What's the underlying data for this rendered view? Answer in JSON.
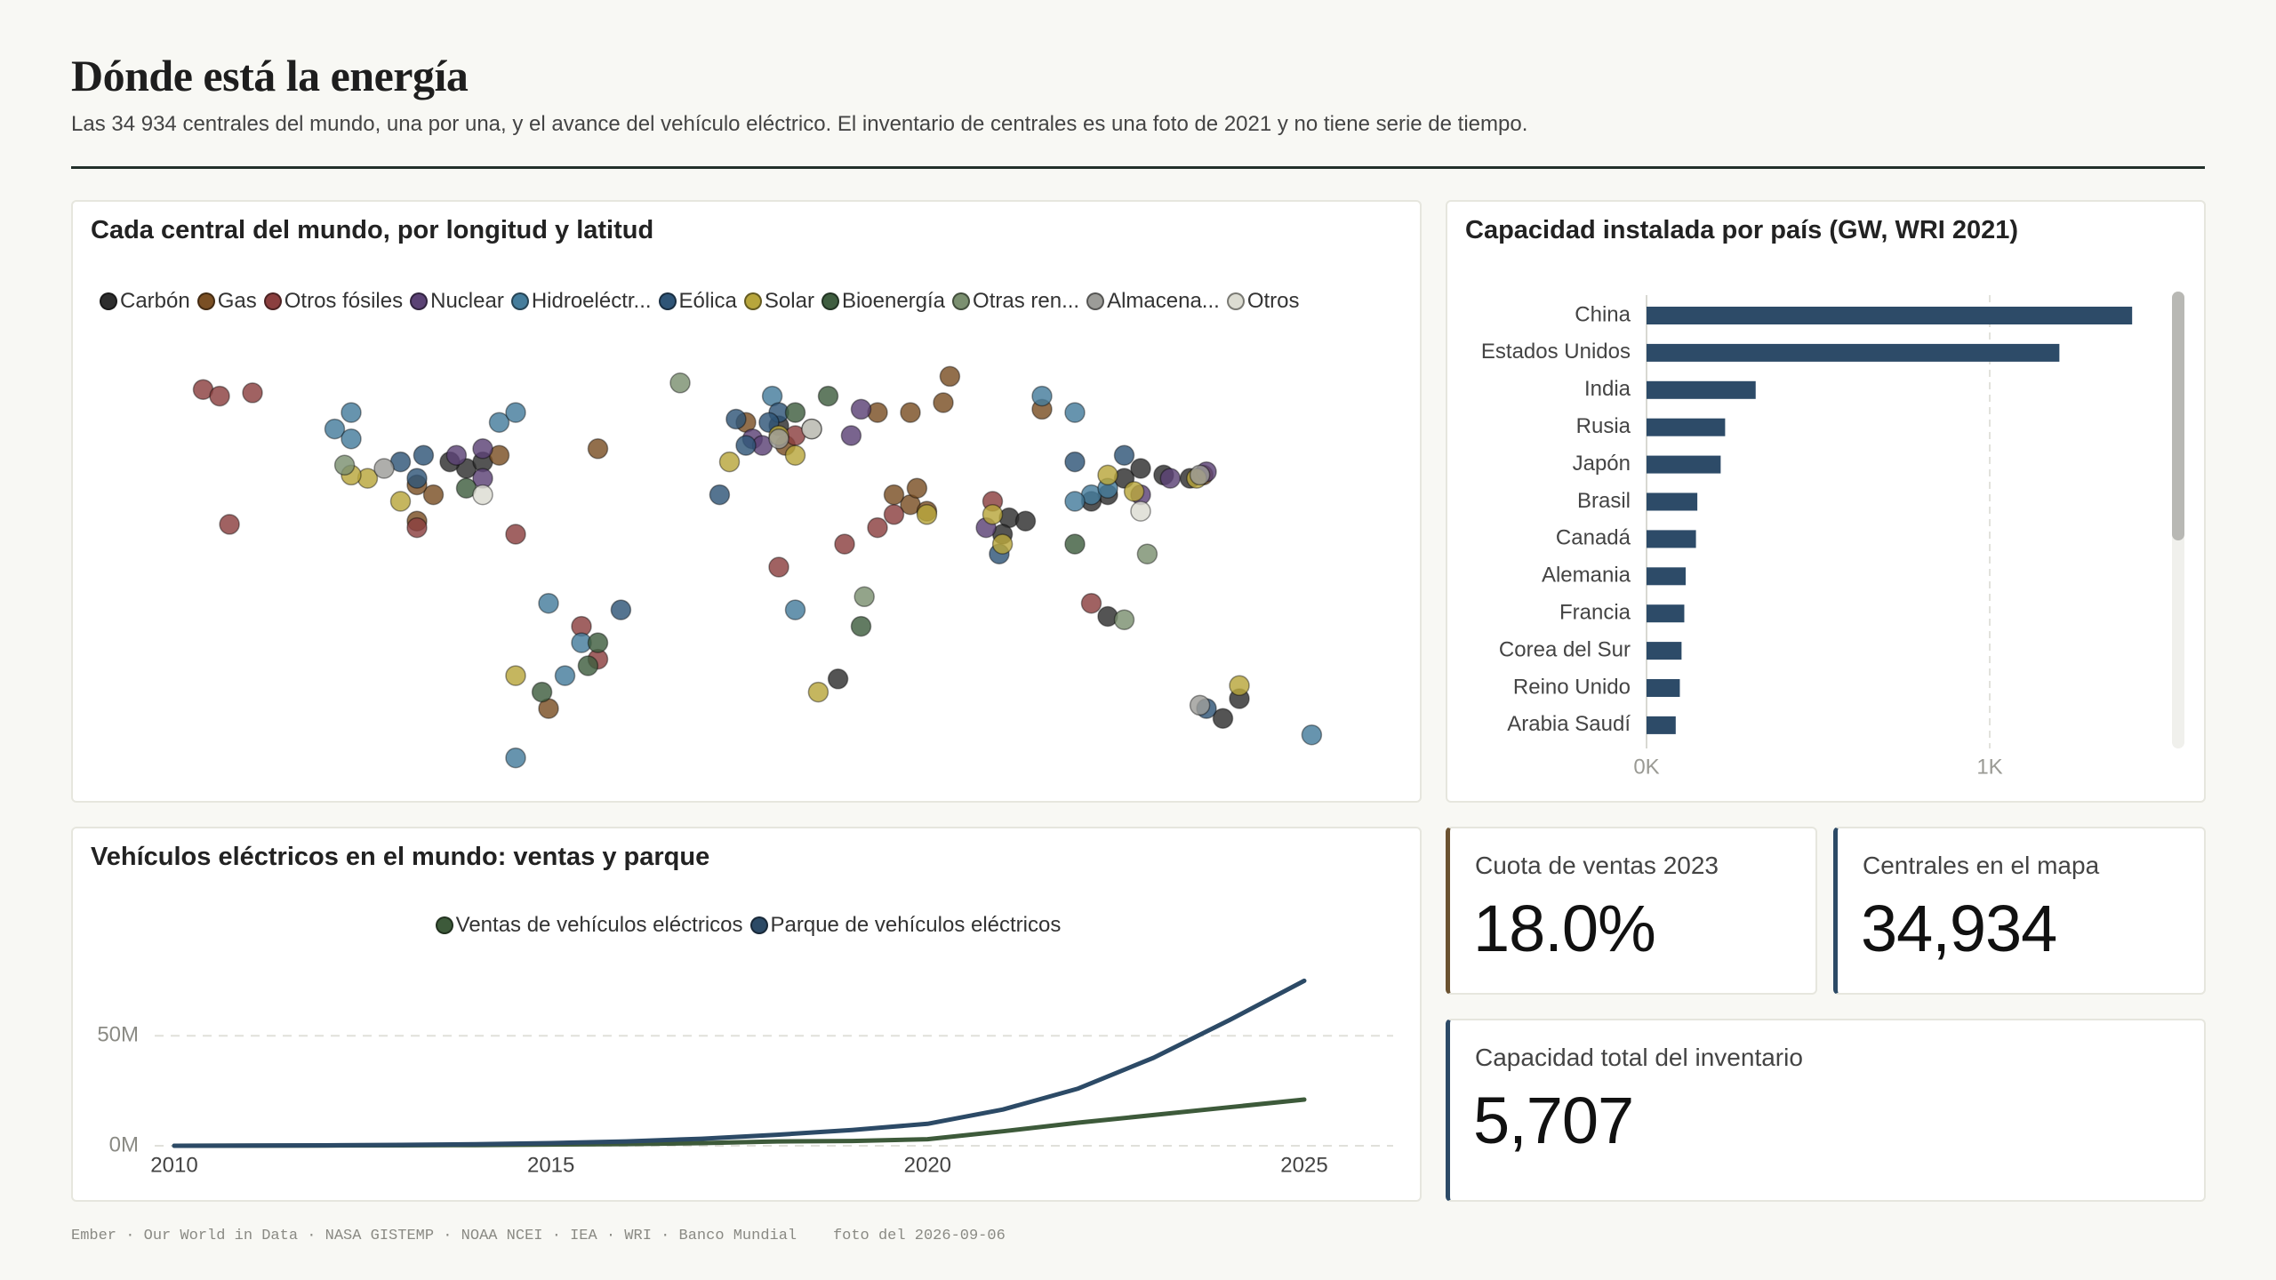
{
  "header": {
    "title": "Dónde está la energía",
    "subtitle": "Las 34 934 centrales del mundo, una por una, y el avance del vehículo eléctrico. El inventario de centrales es una foto de 2021 y no tiene serie de tiempo."
  },
  "chart_data": [
    {
      "type": "scatter",
      "title": "Cada central del mundo, por longitud y latitud",
      "xlim": [
        -180,
        180
      ],
      "ylim": [
        -56,
        78
      ],
      "series": [
        {
          "name": "Carbón",
          "color": "#2e2e2e",
          "x": [
            -85,
            -90,
            -80,
            115,
            110,
            120,
            105,
            80,
            85,
            78,
            20,
            10,
            28,
            150,
            145,
            110,
            135,
            127
          ],
          "values": [
            38,
            40,
            40,
            35,
            30,
            38,
            28,
            23,
            22,
            18,
            50,
            51,
            -26,
            -32,
            -38,
            -7,
            35,
            36
          ]
        },
        {
          "name": "Gas",
          "color": "#7a4f24",
          "x": [
            -95,
            -100,
            -75,
            50,
            60,
            40,
            90,
            50,
            55,
            45,
            0,
            12,
            -100,
            -60,
            139,
            52,
            -45,
            62
          ],
          "values": [
            30,
            33,
            42,
            55,
            58,
            55,
            56,
            27,
            25,
            30,
            52,
            45,
            22,
            -35,
            36,
            32,
            44,
            66
          ]
        },
        {
          "name": "Otros fósiles",
          "color": "#8b3f3f",
          "x": [
            -165,
            -160,
            -150,
            45,
            40,
            -50,
            -45,
            10,
            30,
            15,
            75,
            105,
            -100,
            -70,
            -157
          ],
          "values": [
            62,
            60,
            61,
            24,
            20,
            -10,
            -20,
            8,
            15,
            48,
            28,
            -3,
            20,
            18,
            21
          ]
        },
        {
          "name": "Nuclear",
          "color": "#5b4275",
          "x": [
            2,
            5,
            -80,
            -88,
            140,
            129,
            120,
            35,
            32,
            -80,
            73
          ],
          "values": [
            47,
            45,
            35,
            42,
            37,
            35,
            30,
            56,
            48,
            44,
            20
          ]
        },
        {
          "name": "Hidroeléctr...",
          "color": "#457d9c",
          "x": [
            -75,
            -70,
            -120,
            -125,
            -55,
            -50,
            -60,
            105,
            100,
            110,
            100,
            90,
            8,
            15,
            -120,
            172,
            -70
          ],
          "values": [
            52,
            55,
            55,
            50,
            -25,
            -15,
            -3,
            30,
            28,
            32,
            55,
            60,
            60,
            -5,
            47,
            -43,
            -50
          ]
        },
        {
          "name": "Eólica",
          "color": "#2f5577",
          "x": [
            10,
            -3,
            7,
            0,
            -100,
            -98,
            -105,
            115,
            100,
            77,
            -38,
            140,
            -8
          ],
          "values": [
            55,
            53,
            52,
            45,
            35,
            42,
            40,
            42,
            40,
            12,
            -5,
            -35,
            30
          ]
        },
        {
          "name": "Solar",
          "color": "#b8a63c",
          "x": [
            10,
            -5,
            15,
            -115,
            -120,
            110,
            118,
            75,
            78,
            137,
            150,
            -70,
            22,
            55,
            -105
          ],
          "values": [
            48,
            40,
            42,
            35,
            36,
            36,
            31,
            24,
            15,
            35,
            -28,
            -25,
            -30,
            24,
            28
          ]
        },
        {
          "name": "Bioenergía",
          "color": "#3f5e40",
          "x": [
            -48,
            -45,
            15,
            25,
            -85,
            100,
            -62,
            35
          ],
          "values": [
            -22,
            -15,
            55,
            60,
            32,
            15,
            -30,
            -10
          ]
        },
        {
          "name": "Otras ren...",
          "color": "#7b9070",
          "x": [
            -20,
            115,
            122,
            36,
            -122
          ],
          "values": [
            64,
            -8,
            12,
            -1,
            39
          ]
        },
        {
          "name": "Almacena...",
          "color": "#9c9c98",
          "x": [
            -110,
            10,
            138,
            138
          ],
          "values": [
            38,
            47,
            36,
            -34
          ]
        },
        {
          "name": "Otros",
          "color": "#dcdcd2",
          "x": [
            20,
            -80,
            120
          ],
          "values": [
            50,
            30,
            25
          ]
        }
      ]
    },
    {
      "type": "bar",
      "orientation": "horizontal",
      "title": "Capacidad instalada por país (GW, WRI 2021)",
      "color": "#2d4b68",
      "grid": true,
      "categories": [
        "China",
        "Estados Unidos",
        "India",
        "Rusia",
        "Japón",
        "Brasil",
        "Canadá",
        "Alemania",
        "Francia",
        "Corea del Sur",
        "Reino Unido",
        "Arabia Saudí"
      ],
      "values": [
        1415,
        1203,
        318,
        229,
        216,
        148,
        144,
        114,
        110,
        102,
        97,
        85
      ],
      "xlim": [
        0,
        1500
      ],
      "xticks": [
        {
          "value": 0,
          "label": "0K"
        },
        {
          "value": 1000,
          "label": "1K"
        }
      ]
    },
    {
      "type": "line",
      "title": "Vehículos eléctricos en el mundo: ventas y parque",
      "grid": true,
      "x": [
        2010,
        2011,
        2012,
        2013,
        2014,
        2015,
        2016,
        2017,
        2018,
        2019,
        2020,
        2021,
        2022,
        2023,
        2024,
        2025
      ],
      "xlim": [
        2010,
        2025
      ],
      "xticks": [
        2010,
        2015,
        2020,
        2025
      ],
      "ylim": [
        0,
        80000000
      ],
      "yticks": [
        {
          "value": 0,
          "label": "0M"
        },
        {
          "value": 50000000,
          "label": "50M"
        }
      ],
      "series": [
        {
          "name": "Ventas de vehículos eléctricos",
          "color": "#3d5a3a",
          "values": [
            10000,
            50000,
            130000,
            200000,
            320000,
            550000,
            750000,
            1200000,
            2000000,
            2200000,
            3000000,
            6600000,
            10500000,
            14000000,
            17500000,
            21000000
          ]
        },
        {
          "name": "Parque de vehículos eléctricos",
          "color": "#2c4a66",
          "values": [
            20000,
            70000,
            200000,
            400000,
            700000,
            1200000,
            2000000,
            3200000,
            5000000,
            7200000,
            10000000,
            16500000,
            26000000,
            40000000,
            57000000,
            75000000
          ]
        }
      ]
    }
  ],
  "kpis": [
    {
      "label": "Cuota de ventas 2023",
      "value": "18.0%",
      "color": "#6b5230"
    },
    {
      "label": "Centrales en el mapa",
      "value": "34,934",
      "color": "#2c4a66"
    },
    {
      "label": "Capacidad total del inventario",
      "value": "5,707",
      "color": "#2c4a66"
    }
  ],
  "footer": {
    "sources": "Ember · Our World in Data · NASA GISTEMP · NOAA NCEI · IEA · WRI · Banco Mundial",
    "snapshot": "foto del 2026-09-06"
  }
}
